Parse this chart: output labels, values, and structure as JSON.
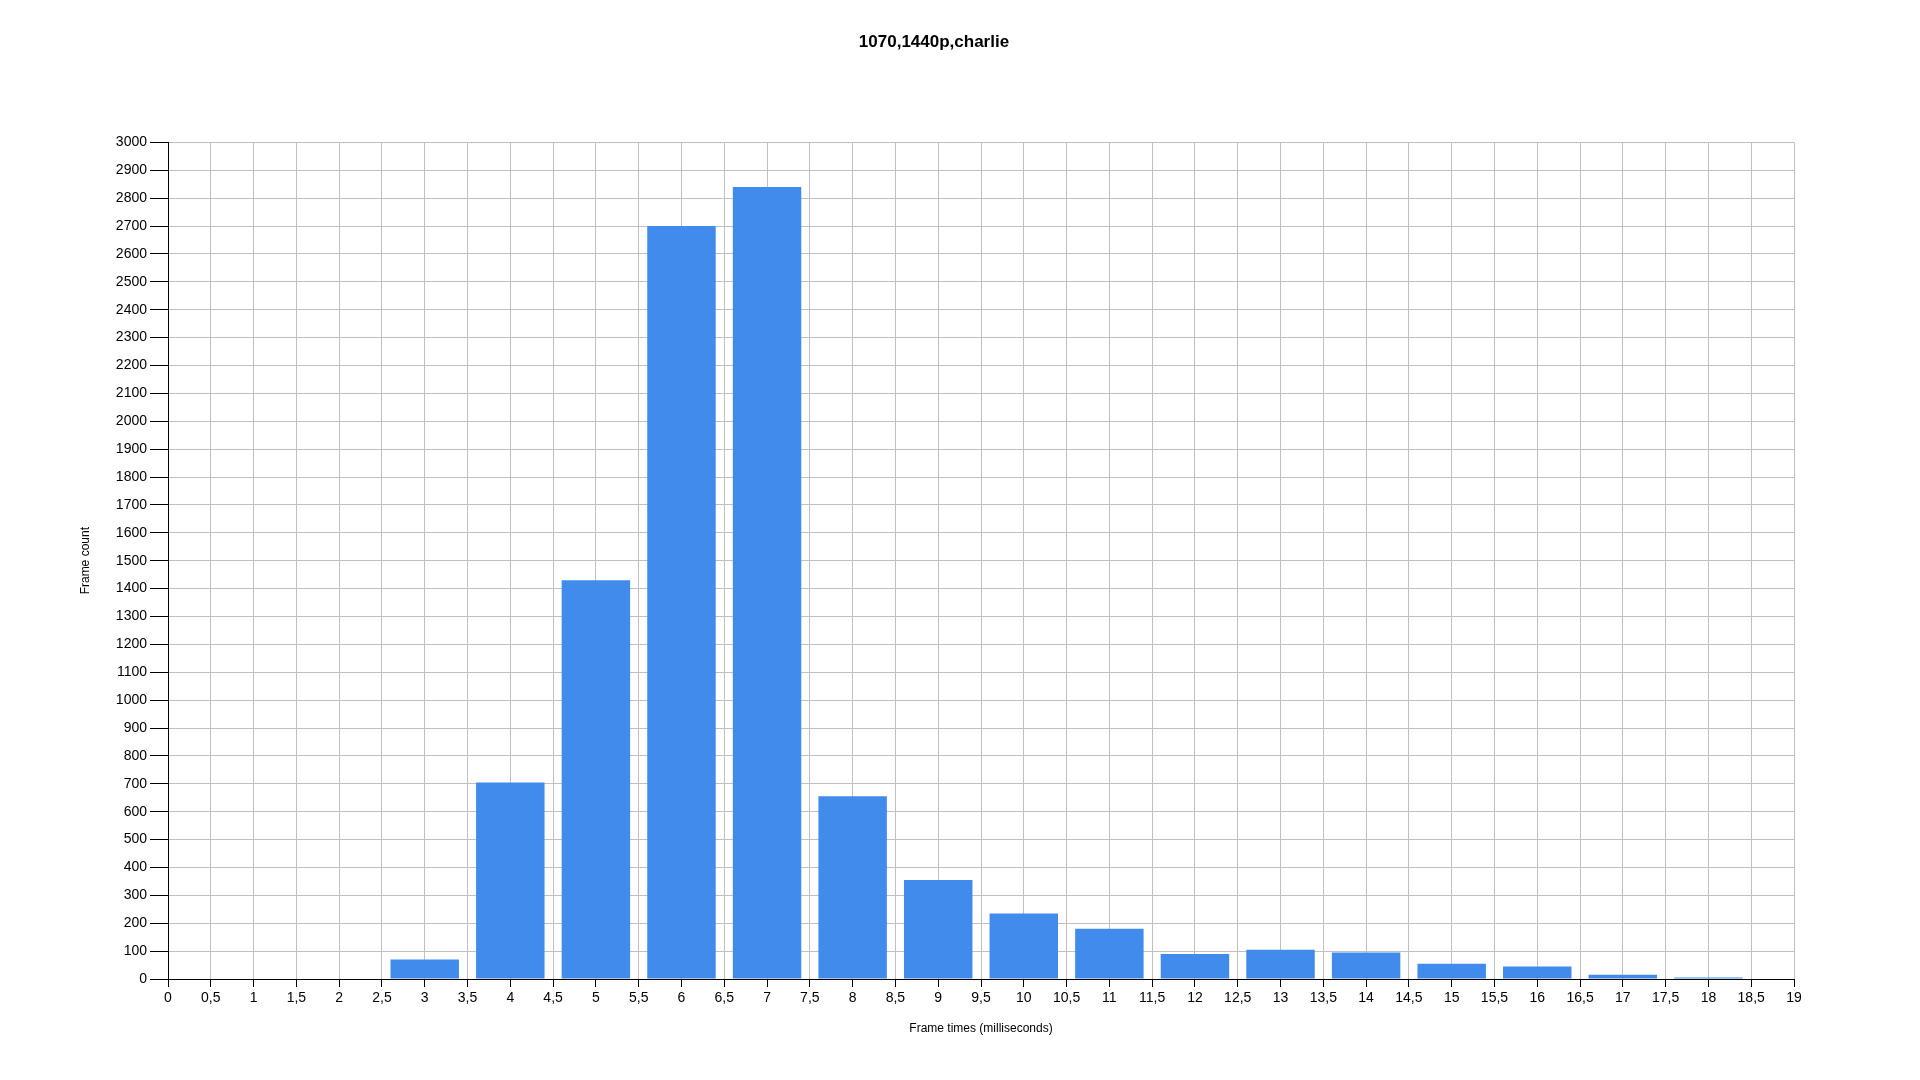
{
  "chart_data": {
    "type": "bar",
    "title": "1070,1440p,charlie",
    "xlabel": "Frame times (milliseconds)",
    "ylabel": "Frame count",
    "x": [
      3,
      4,
      5,
      6,
      7,
      8,
      9,
      10,
      11,
      12,
      13,
      14,
      15,
      16,
      17,
      18
    ],
    "values": [
      70,
      705,
      1430,
      2700,
      2840,
      655,
      355,
      235,
      180,
      90,
      105,
      95,
      55,
      45,
      15,
      5
    ],
    "color": "#418bed",
    "xlim": [
      0,
      19
    ],
    "xticks": [
      0,
      {
        "value": 0.5,
        "label": "0,5"
      },
      1,
      {
        "value": 1.5,
        "label": "1,5"
      },
      2,
      {
        "value": 2.5,
        "label": "2,5"
      },
      3,
      {
        "value": 3.5,
        "label": "3,5"
      },
      4,
      {
        "value": 4.5,
        "label": "4,5"
      },
      5,
      {
        "value": 5.5,
        "label": "5,5"
      },
      6,
      {
        "value": 6.5,
        "label": "6,5"
      },
      7,
      {
        "value": 7.5,
        "label": "7,5"
      },
      8,
      {
        "value": 8.5,
        "label": "8,5"
      },
      9,
      {
        "value": 9.5,
        "label": "9,5"
      },
      10,
      {
        "value": 10.5,
        "label": "10,5"
      },
      11,
      {
        "value": 11.5,
        "label": "11,5"
      },
      12,
      {
        "value": 12.5,
        "label": "12,5"
      },
      13,
      {
        "value": 13.5,
        "label": "13,5"
      },
      14,
      {
        "value": 14.5,
        "label": "14,5"
      },
      15,
      {
        "value": 15.5,
        "label": "15,5"
      },
      16,
      {
        "value": 16.5,
        "label": "16,5"
      },
      17,
      {
        "value": 17.5,
        "label": "17,5"
      },
      18,
      {
        "value": 18.5,
        "label": "18,5"
      },
      19
    ],
    "ylim": [
      0,
      3000
    ],
    "yticks": [
      0,
      100,
      200,
      300,
      400,
      500,
      600,
      700,
      800,
      900,
      1000,
      1100,
      1200,
      1300,
      1400,
      1500,
      1600,
      1700,
      1800,
      1900,
      2000,
      2100,
      2200,
      2300,
      2400,
      2500,
      2600,
      2700,
      2800,
      2900,
      3000
    ],
    "grid": true
  }
}
